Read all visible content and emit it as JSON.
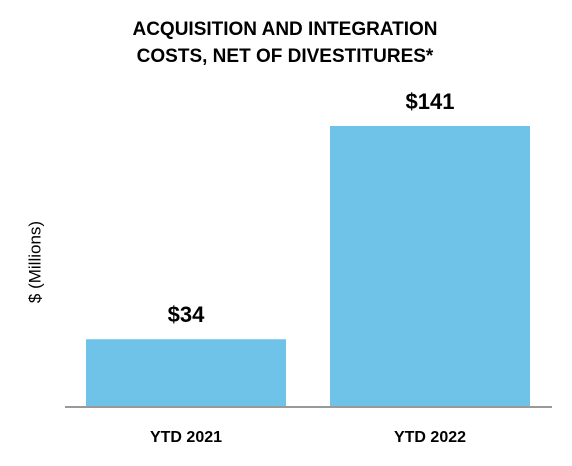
{
  "chart_data": {
    "type": "bar",
    "title": [
      "ACQUISITION AND INTEGRATION",
      "COSTS, NET OF DIVESTITURES*"
    ],
    "y_label": "$ (Millions)",
    "categories": [
      "YTD 2021",
      "YTD 2022"
    ],
    "values": [
      34,
      141
    ],
    "value_labels": [
      "$34",
      "$141"
    ],
    "color": "#6fc3e8"
  }
}
